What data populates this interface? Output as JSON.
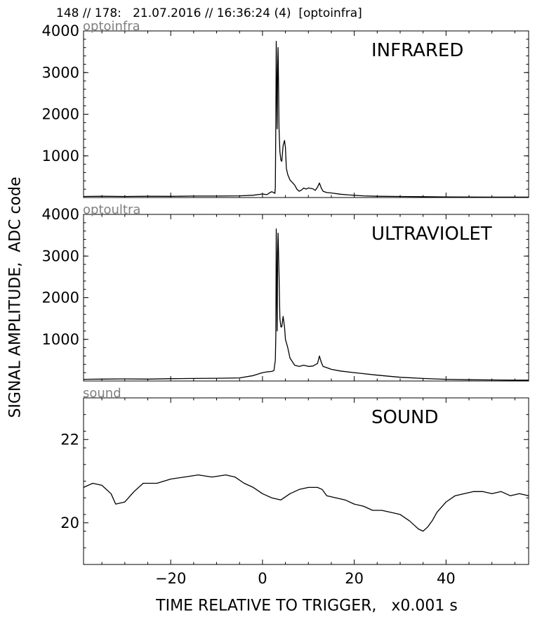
{
  "header": {
    "text": "148 // 178:   21.07.2016 // 16:36:24 (4)  [optoinfra]"
  },
  "axes": {
    "ylabel": "SIGNAL AMPLITUDE,  ADC code",
    "xlabel": "TIME RELATIVE TO TRIGGER,   x0.001 s"
  },
  "chart_data": [
    {
      "type": "line",
      "channel": "optoinfra",
      "title": "INFRARED",
      "xlim": [
        -39,
        58
      ],
      "ylim": [
        0,
        4000
      ],
      "yticks": [
        1000,
        2000,
        3000,
        4000
      ],
      "xticks": [
        -20,
        0,
        20,
        40
      ],
      "show_xtick_labels": false,
      "series": [
        {
          "x": [
            -39,
            -35,
            -30,
            -25,
            -20,
            -15,
            -10,
            -5,
            -2,
            0,
            1,
            1.5,
            2,
            2.4,
            2.7,
            2.8,
            2.9,
            3.0,
            3.2,
            3.3,
            3.4,
            3.5,
            3.6,
            3.8,
            4.0,
            4.2,
            4.5,
            4.8,
            5.0,
            5.2,
            5.5,
            6.0,
            7.0,
            7.5,
            8.0,
            8.5,
            9.0,
            9.5,
            10.0,
            11.0,
            11.5,
            12.0,
            12.4,
            12.8,
            13.2,
            14.0,
            15,
            17,
            19,
            22,
            25,
            30,
            35,
            40,
            45,
            50,
            55,
            58
          ],
          "y": [
            25,
            30,
            25,
            30,
            28,
            35,
            35,
            40,
            55,
            85,
            70,
            110,
            140,
            120,
            100,
            250,
            1800,
            3750,
            1650,
            3100,
            3600,
            2700,
            1700,
            1100,
            900,
            870,
            1250,
            1370,
            1200,
            700,
            550,
            420,
            300,
            200,
            150,
            180,
            230,
            200,
            230,
            210,
            170,
            250,
            350,
            230,
            150,
            120,
            110,
            80,
            60,
            40,
            30,
            25,
            20,
            15,
            12,
            10,
            10,
            10
          ]
        }
      ]
    },
    {
      "type": "line",
      "channel": "optoultra",
      "title": "ULTRAVIOLET",
      "xlim": [
        -39,
        58
      ],
      "ylim": [
        0,
        4000
      ],
      "yticks": [
        1000,
        2000,
        3000,
        4000
      ],
      "xticks": [
        -20,
        0,
        20,
        40
      ],
      "show_xtick_labels": false,
      "series": [
        {
          "x": [
            -39,
            -35,
            -30,
            -25,
            -20,
            -15,
            -10,
            -5,
            -2,
            0,
            1,
            2,
            2.5,
            2.8,
            2.9,
            3.0,
            3.2,
            3.3,
            3.4,
            3.6,
            3.8,
            4.0,
            4.2,
            4.5,
            4.8,
            5.0,
            5.5,
            6.0,
            7.0,
            8.0,
            9.0,
            10.0,
            11.0,
            12.0,
            12.4,
            12.8,
            13.2,
            14.0,
            15,
            17,
            20,
            25,
            30,
            35,
            40,
            45,
            50,
            55,
            58
          ],
          "y": [
            40,
            45,
            50,
            45,
            55,
            60,
            65,
            75,
            130,
            200,
            220,
            230,
            250,
            500,
            1100,
            3650,
            1200,
            3100,
            3550,
            2600,
            1500,
            1300,
            1300,
            1550,
            1300,
            1000,
            800,
            550,
            380,
            350,
            380,
            350,
            360,
            420,
            600,
            450,
            350,
            320,
            280,
            240,
            200,
            140,
            90,
            60,
            40,
            30,
            25,
            20,
            20
          ]
        }
      ]
    },
    {
      "type": "line",
      "channel": "sound",
      "title": "SOUND",
      "xlim": [
        -39,
        58
      ],
      "ylim": [
        19,
        23
      ],
      "yticks": [
        20,
        22
      ],
      "xticks": [
        -20,
        0,
        20,
        40
      ],
      "show_xtick_labels": true,
      "series": [
        {
          "x": [
            -39,
            -37,
            -35,
            -33,
            -32,
            -30,
            -28,
            -26,
            -23,
            -20,
            -17,
            -14,
            -11,
            -8,
            -6,
            -4,
            -2,
            0,
            2,
            4,
            6,
            8,
            10,
            12,
            13,
            14,
            16,
            18,
            20,
            22,
            24,
            26,
            28,
            30,
            32,
            33,
            34,
            35,
            36,
            37,
            38,
            40,
            42,
            44,
            46,
            48,
            50,
            52,
            54,
            56,
            58
          ],
          "y": [
            20.85,
            20.95,
            20.9,
            20.7,
            20.45,
            20.5,
            20.75,
            20.95,
            20.95,
            21.05,
            21.1,
            21.15,
            21.1,
            21.15,
            21.1,
            20.95,
            20.85,
            20.7,
            20.6,
            20.55,
            20.7,
            20.8,
            20.85,
            20.85,
            20.8,
            20.65,
            20.6,
            20.55,
            20.45,
            20.4,
            20.3,
            20.3,
            20.25,
            20.2,
            20.05,
            19.95,
            19.85,
            19.8,
            19.9,
            20.05,
            20.25,
            20.5,
            20.65,
            20.7,
            20.75,
            20.75,
            20.7,
            20.75,
            20.65,
            20.7,
            20.65
          ]
        }
      ]
    }
  ]
}
